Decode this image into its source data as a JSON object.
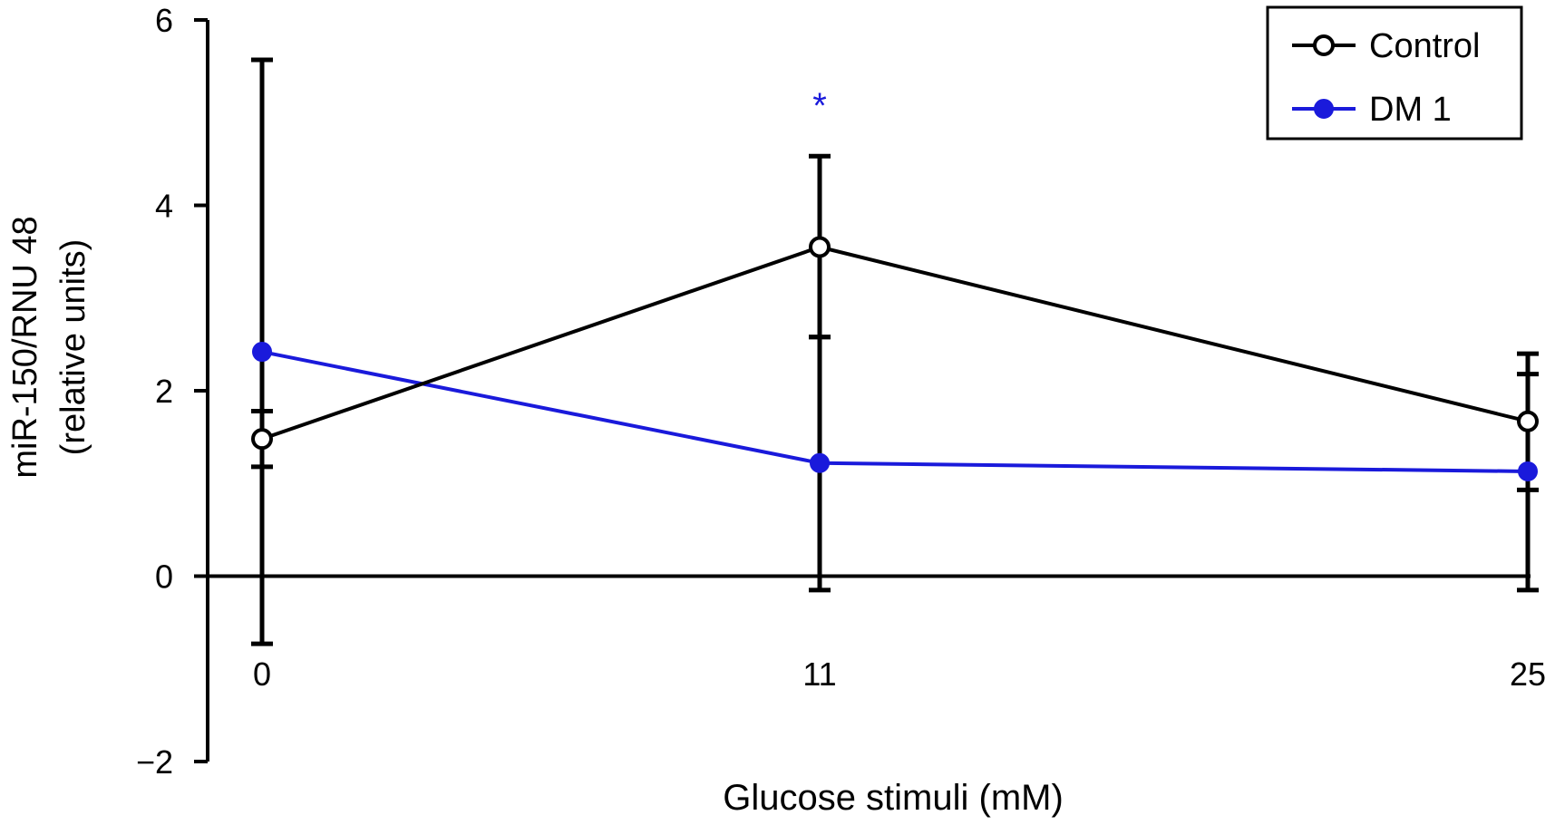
{
  "chart_data": {
    "type": "line",
    "xlabel": "Glucose stimuli (mM)",
    "ylabel": "miR-150/RNU 48",
    "ylabel_line2": "(relative units)",
    "x": [
      0,
      11,
      25
    ],
    "x_tick_labels": [
      "0",
      "11",
      "25"
    ],
    "ylim": [
      -2,
      6
    ],
    "y_ticks": [
      -2,
      0,
      2,
      4,
      6
    ],
    "y_tick_labels": [
      "−2",
      "0",
      "2",
      "4",
      "6"
    ],
    "grid": false,
    "legend_position": "top-right",
    "series": [
      {
        "name": "Control",
        "color": "#000000",
        "marker": "open-circle",
        "values": [
          1.48,
          3.55,
          1.67
        ],
        "error_upper": [
          1.78,
          4.53,
          2.4
        ],
        "error_lower": [
          1.18,
          2.58,
          0.93
        ]
      },
      {
        "name": "DM 1",
        "color": "#1a1adb",
        "marker": "filled-circle",
        "values": [
          2.42,
          1.22,
          1.13
        ],
        "error_upper": [
          5.57,
          2.58,
          2.18
        ],
        "error_lower": [
          -0.73,
          -0.15,
          -0.15
        ]
      }
    ],
    "annotations": [
      {
        "text": "*",
        "x": 11,
        "y": 5.2,
        "color": "#1a1adb"
      }
    ]
  }
}
